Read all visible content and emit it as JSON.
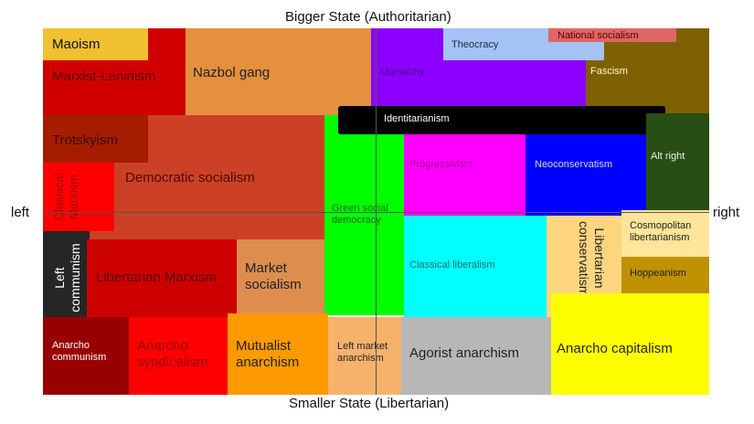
{
  "axes": {
    "top": "Bigger State (Authoritarian)",
    "bottom": "Smaller State (Libertarian)",
    "left": "left",
    "right": "right"
  },
  "regions": {
    "marxist_leninism": {
      "label": "Marxist-Leninism",
      "color": "#d10000"
    },
    "maoism": {
      "label": "Maoism",
      "color": "#f0c030"
    },
    "nazbol": {
      "label": "Nazbol gang",
      "color": "#e5903e"
    },
    "monarchy": {
      "label": "Monarchy",
      "color": "#8b00ff"
    },
    "fascism": {
      "label": "Fascism",
      "color": "#7f6000"
    },
    "theocracy": {
      "label": "Theocracy",
      "color": "#a4c2f4"
    },
    "national_socialism": {
      "label": "National socialism",
      "color": "#e06666"
    },
    "democratic_socialism": {
      "label": "Democratic socialism",
      "color": "#cc4125"
    },
    "trotskyism": {
      "label": "Trotskyism",
      "color": "#a61c00"
    },
    "classical_marxism": {
      "label": "Classical Marxism",
      "color": "#ff0000"
    },
    "green_social_democracy": {
      "label": "Green social democracy",
      "color": "#00ff00"
    },
    "identitarianism": {
      "label": "Identitarianism",
      "color": "#000000"
    },
    "progressivism": {
      "label": "Progressivism",
      "color": "#ff00ff"
    },
    "neoconservatism": {
      "label": "Neoconservatism",
      "color": "#0000ff"
    },
    "alt_right": {
      "label": "Alt right",
      "color": "#274e13"
    },
    "classical_liberalism": {
      "label": "Classical liberalism",
      "color": "#00ffff"
    },
    "libertarian_conservatism": {
      "label": "Libertarian conservatism",
      "color": "#ffd580"
    },
    "cosmopolitan_libertarianism": {
      "label": "Cosmopolitan libertarianism",
      "color": "#ffe599"
    },
    "hoppeanism": {
      "label": "Hoppeanism",
      "color": "#bf9000"
    },
    "anarcho_capitalism": {
      "label": "Anarcho capitalism",
      "color": "#ffff00"
    },
    "left_communism": {
      "label": "Left communism",
      "color": "#262626"
    },
    "libertarian_marxism": {
      "label": "Libertarian Marxism",
      "color": "#cc0000"
    },
    "market_socialism": {
      "label": "Market socialism",
      "color": "#dd8e4e"
    },
    "anarcho_communism": {
      "label": "Anarcho communism",
      "color": "#990000"
    },
    "anarcho_syndicalism": {
      "label": "Anarcho syndicalism",
      "color": "#ff0000"
    },
    "mutualist_anarchism": {
      "label": "Mutualist anarchism",
      "color": "#ff9900"
    },
    "left_market_anarchism": {
      "label": "Left market anarchism",
      "color": "#f6b26b"
    },
    "agorist_anarchism": {
      "label": "Agorist anarchism",
      "color": "#b7b7b7"
    }
  }
}
